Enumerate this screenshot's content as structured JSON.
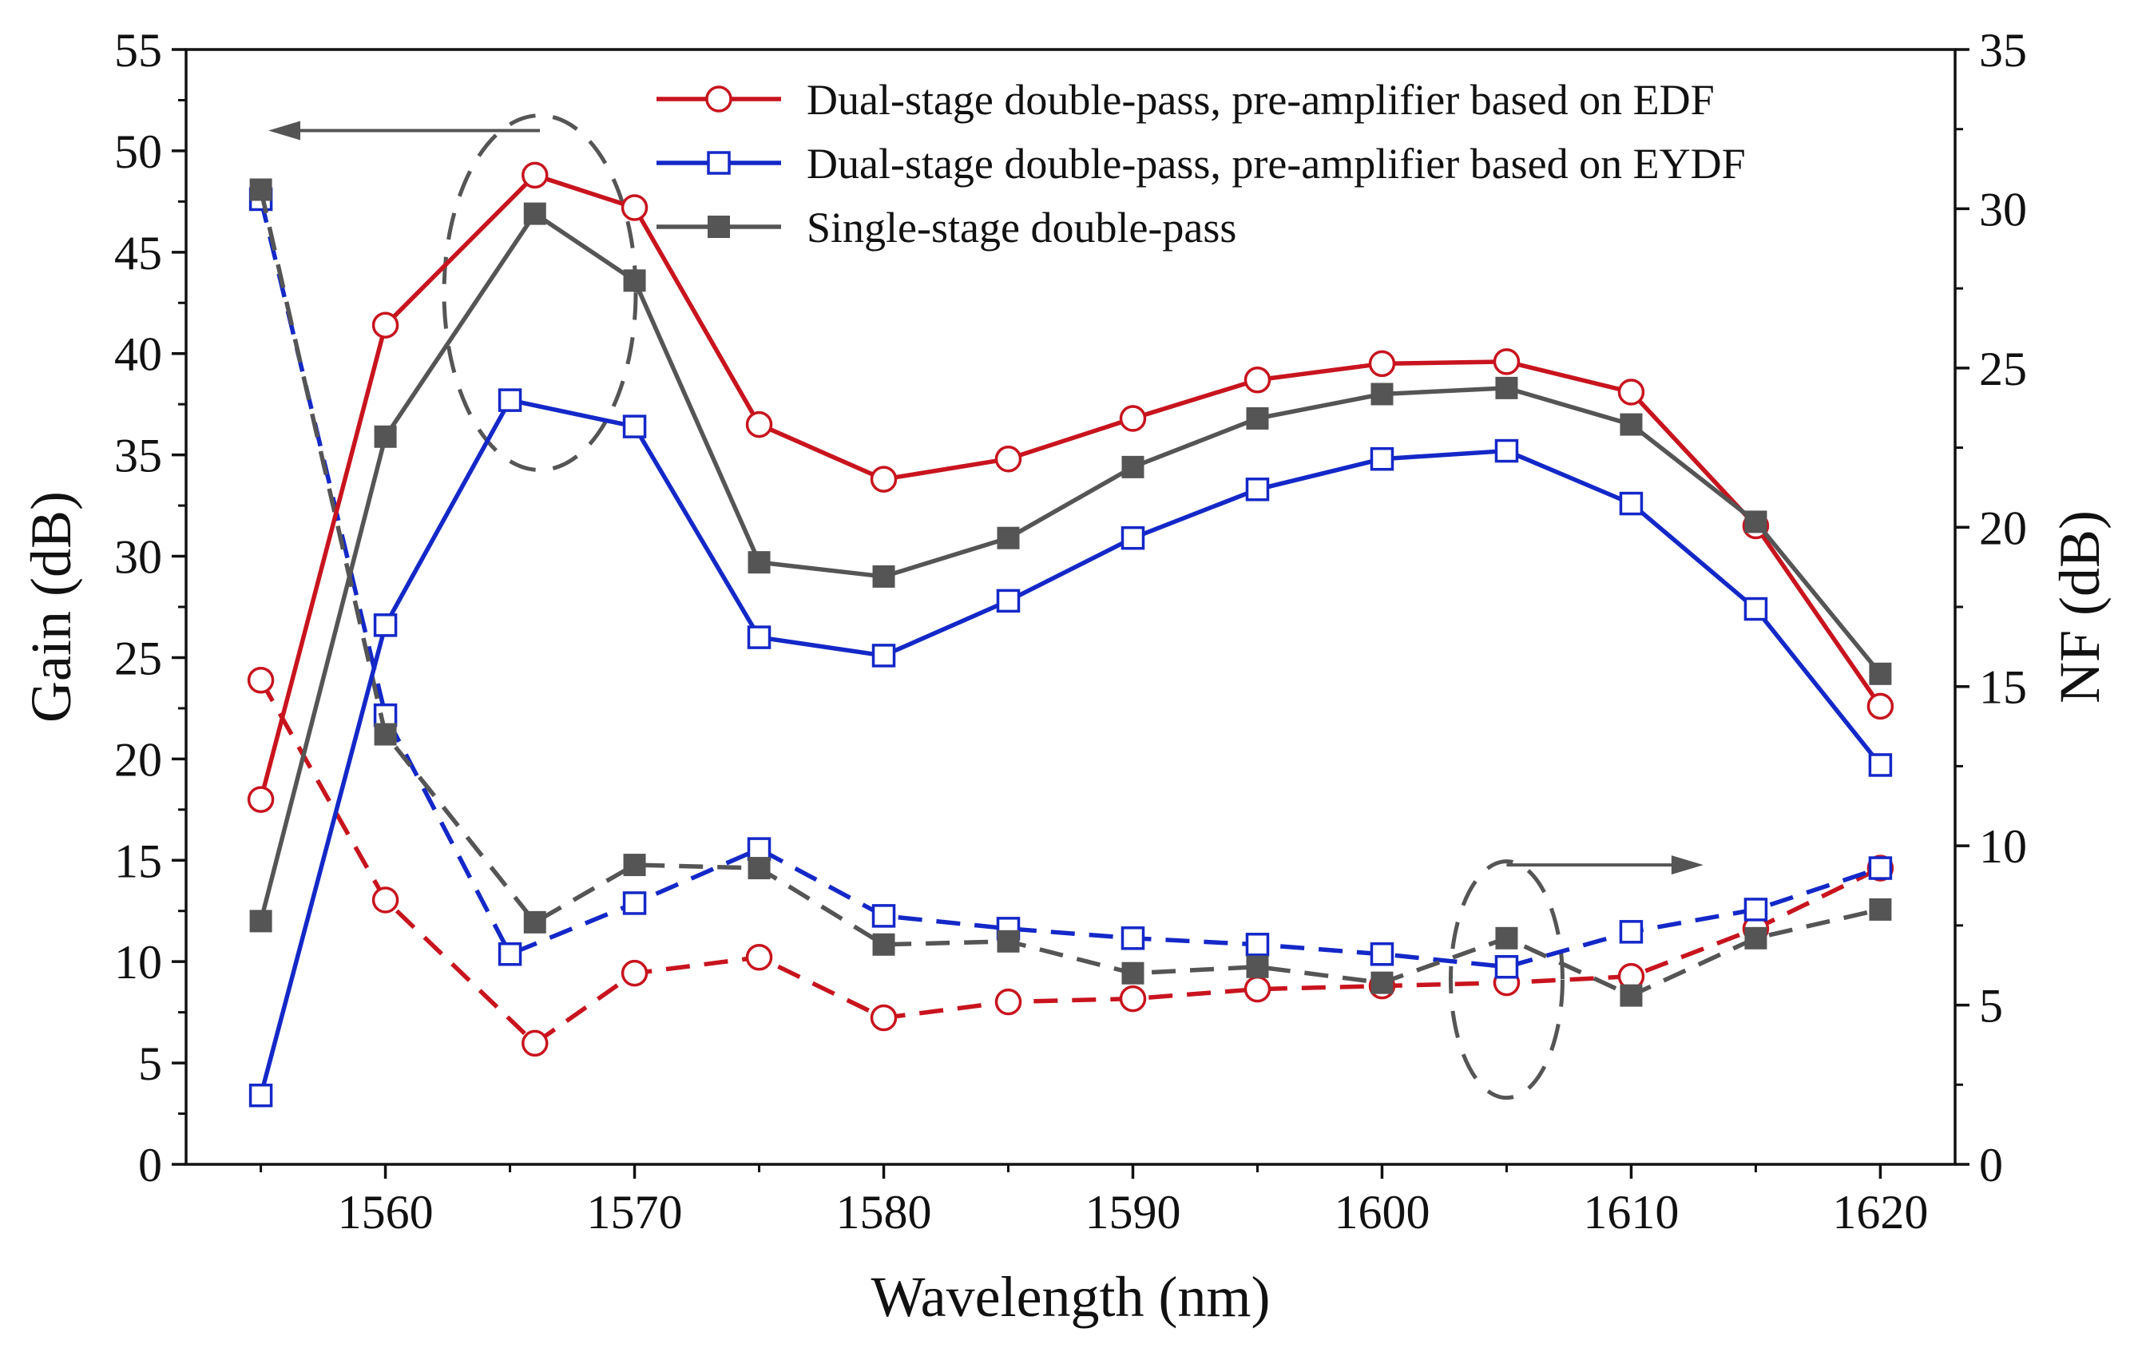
{
  "chart_data": {
    "type": "line",
    "title": "",
    "xlabel": "Wavelength (nm)",
    "ylabel_left": "Gain (dB)",
    "ylabel_right": "NF (dB)",
    "xlim": [
      1552,
      1623
    ],
    "ylim_left": [
      0,
      55
    ],
    "ylim_right": [
      0,
      35
    ],
    "x_ticks": [
      1560,
      1570,
      1580,
      1590,
      1600,
      1610,
      1620
    ],
    "y_left_ticks": [
      0,
      5,
      10,
      15,
      20,
      25,
      30,
      35,
      40,
      45,
      50,
      55
    ],
    "y_right_ticks": [
      0,
      5,
      10,
      15,
      20,
      25,
      30,
      35
    ],
    "legend_position": "top-right",
    "series": [
      {
        "name": "Dual-stage double-pass, pre-amplifier based on EDF",
        "color": "#c8141e",
        "marker": "open-circle",
        "gain": {
          "x": [
            1555,
            1560,
            1566,
            1570,
            1575,
            1580,
            1585,
            1590,
            1595,
            1600,
            1605,
            1610,
            1615,
            1620
          ],
          "y": [
            18.0,
            41.4,
            48.8,
            47.2,
            36.5,
            33.8,
            34.8,
            36.8,
            38.7,
            39.5,
            39.6,
            38.1,
            31.5,
            22.6
          ]
        },
        "nf": {
          "x": [
            1555,
            1560,
            1566,
            1570,
            1575,
            1580,
            1585,
            1590,
            1595,
            1600,
            1605,
            1610,
            1615,
            1620
          ],
          "y": [
            15.2,
            8.3,
            3.8,
            6.0,
            6.5,
            4.6,
            5.1,
            5.2,
            5.5,
            5.6,
            5.7,
            5.9,
            7.4,
            9.3
          ]
        }
      },
      {
        "name": "Dual-stage double-pass, pre-amplifier based on EYDF",
        "color": "#1428c8",
        "marker": "open-square",
        "gain": {
          "x": [
            1555,
            1560,
            1565,
            1570,
            1575,
            1580,
            1585,
            1590,
            1595,
            1600,
            1605,
            1610,
            1615,
            1620
          ],
          "y": [
            3.4,
            26.6,
            37.7,
            36.4,
            26.0,
            25.1,
            27.8,
            30.9,
            33.3,
            34.8,
            35.2,
            32.6,
            27.4,
            19.7
          ]
        },
        "nf": {
          "x": [
            1555,
            1560,
            1565,
            1570,
            1575,
            1580,
            1585,
            1590,
            1595,
            1600,
            1605,
            1610,
            1615,
            1620
          ],
          "y": [
            30.3,
            14.1,
            6.6,
            8.2,
            9.9,
            7.8,
            7.4,
            7.1,
            6.9,
            6.6,
            6.2,
            7.3,
            8.0,
            9.3
          ]
        }
      },
      {
        "name": "Single-stage double-pass",
        "color": "#555555",
        "marker": "filled-square",
        "gain": {
          "x": [
            1555,
            1560,
            1566,
            1570,
            1575,
            1580,
            1585,
            1590,
            1595,
            1600,
            1605,
            1610,
            1615,
            1620
          ],
          "y": [
            12.0,
            35.9,
            46.9,
            43.6,
            29.7,
            29.0,
            30.9,
            34.4,
            36.8,
            38.0,
            38.3,
            36.5,
            31.7,
            24.2
          ]
        },
        "nf": {
          "x": [
            1555,
            1560,
            1566,
            1570,
            1575,
            1580,
            1585,
            1590,
            1595,
            1600,
            1605,
            1610,
            1615,
            1620
          ],
          "y": [
            30.6,
            13.5,
            7.6,
            9.4,
            9.3,
            6.9,
            7.0,
            6.0,
            6.2,
            5.7,
            7.1,
            5.3,
            7.1,
            8.0
          ]
        }
      }
    ],
    "annotations": [
      {
        "type": "dashed-ellipse",
        "around": "gain peak near 1566 nm",
        "arrow": "left",
        "meaning": "curves read on left axis (Gain)"
      },
      {
        "type": "dashed-ellipse",
        "around": "NF points near 1605 nm",
        "arrow": "right",
        "meaning": "curves read on right axis (NF)"
      }
    ]
  }
}
